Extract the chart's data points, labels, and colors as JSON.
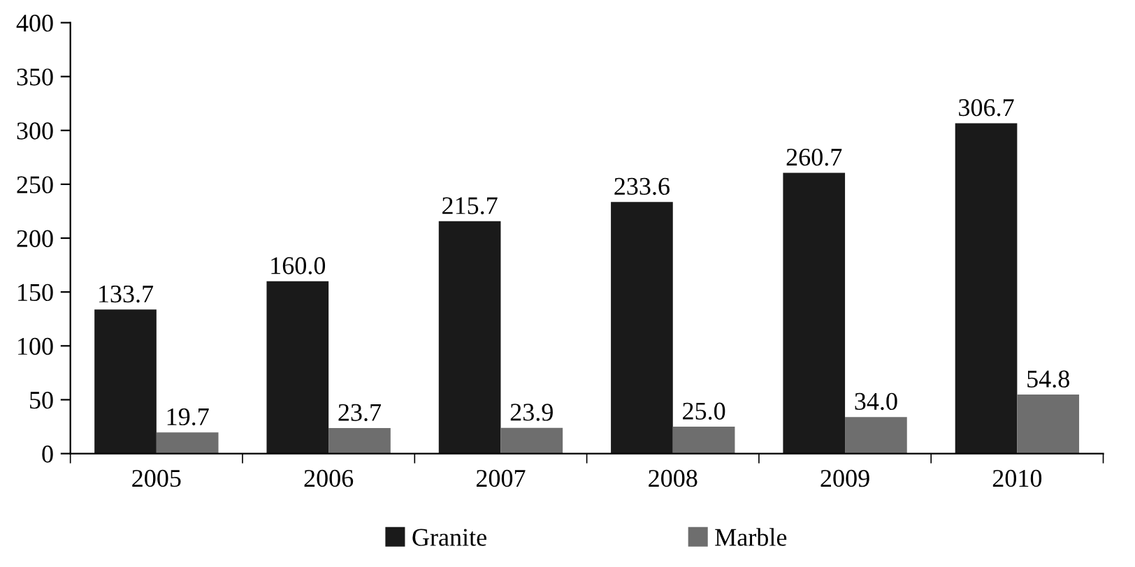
{
  "chart_data": {
    "type": "bar",
    "categories": [
      "2005",
      "2006",
      "2007",
      "2008",
      "2009",
      "2010"
    ],
    "series": [
      {
        "name": "Granite",
        "color": "#1a1a1a",
        "values": [
          133.7,
          160.0,
          215.7,
          233.6,
          260.7,
          306.7
        ],
        "value_labels": [
          "133.7",
          "160.0",
          "215.7",
          "233.6",
          "260.7",
          "306.7"
        ]
      },
      {
        "name": "Marble",
        "color": "#6e6e6e",
        "values": [
          19.7,
          23.7,
          23.9,
          25.0,
          34.0,
          54.8
        ],
        "value_labels": [
          "19.7",
          "23.7",
          "23.9",
          "25.0",
          "34.0",
          "54.8"
        ]
      }
    ],
    "ylim": [
      0,
      400
    ],
    "yticks": [
      0,
      50,
      100,
      150,
      200,
      250,
      300,
      350,
      400
    ],
    "grid": false,
    "legend": "bottom"
  }
}
